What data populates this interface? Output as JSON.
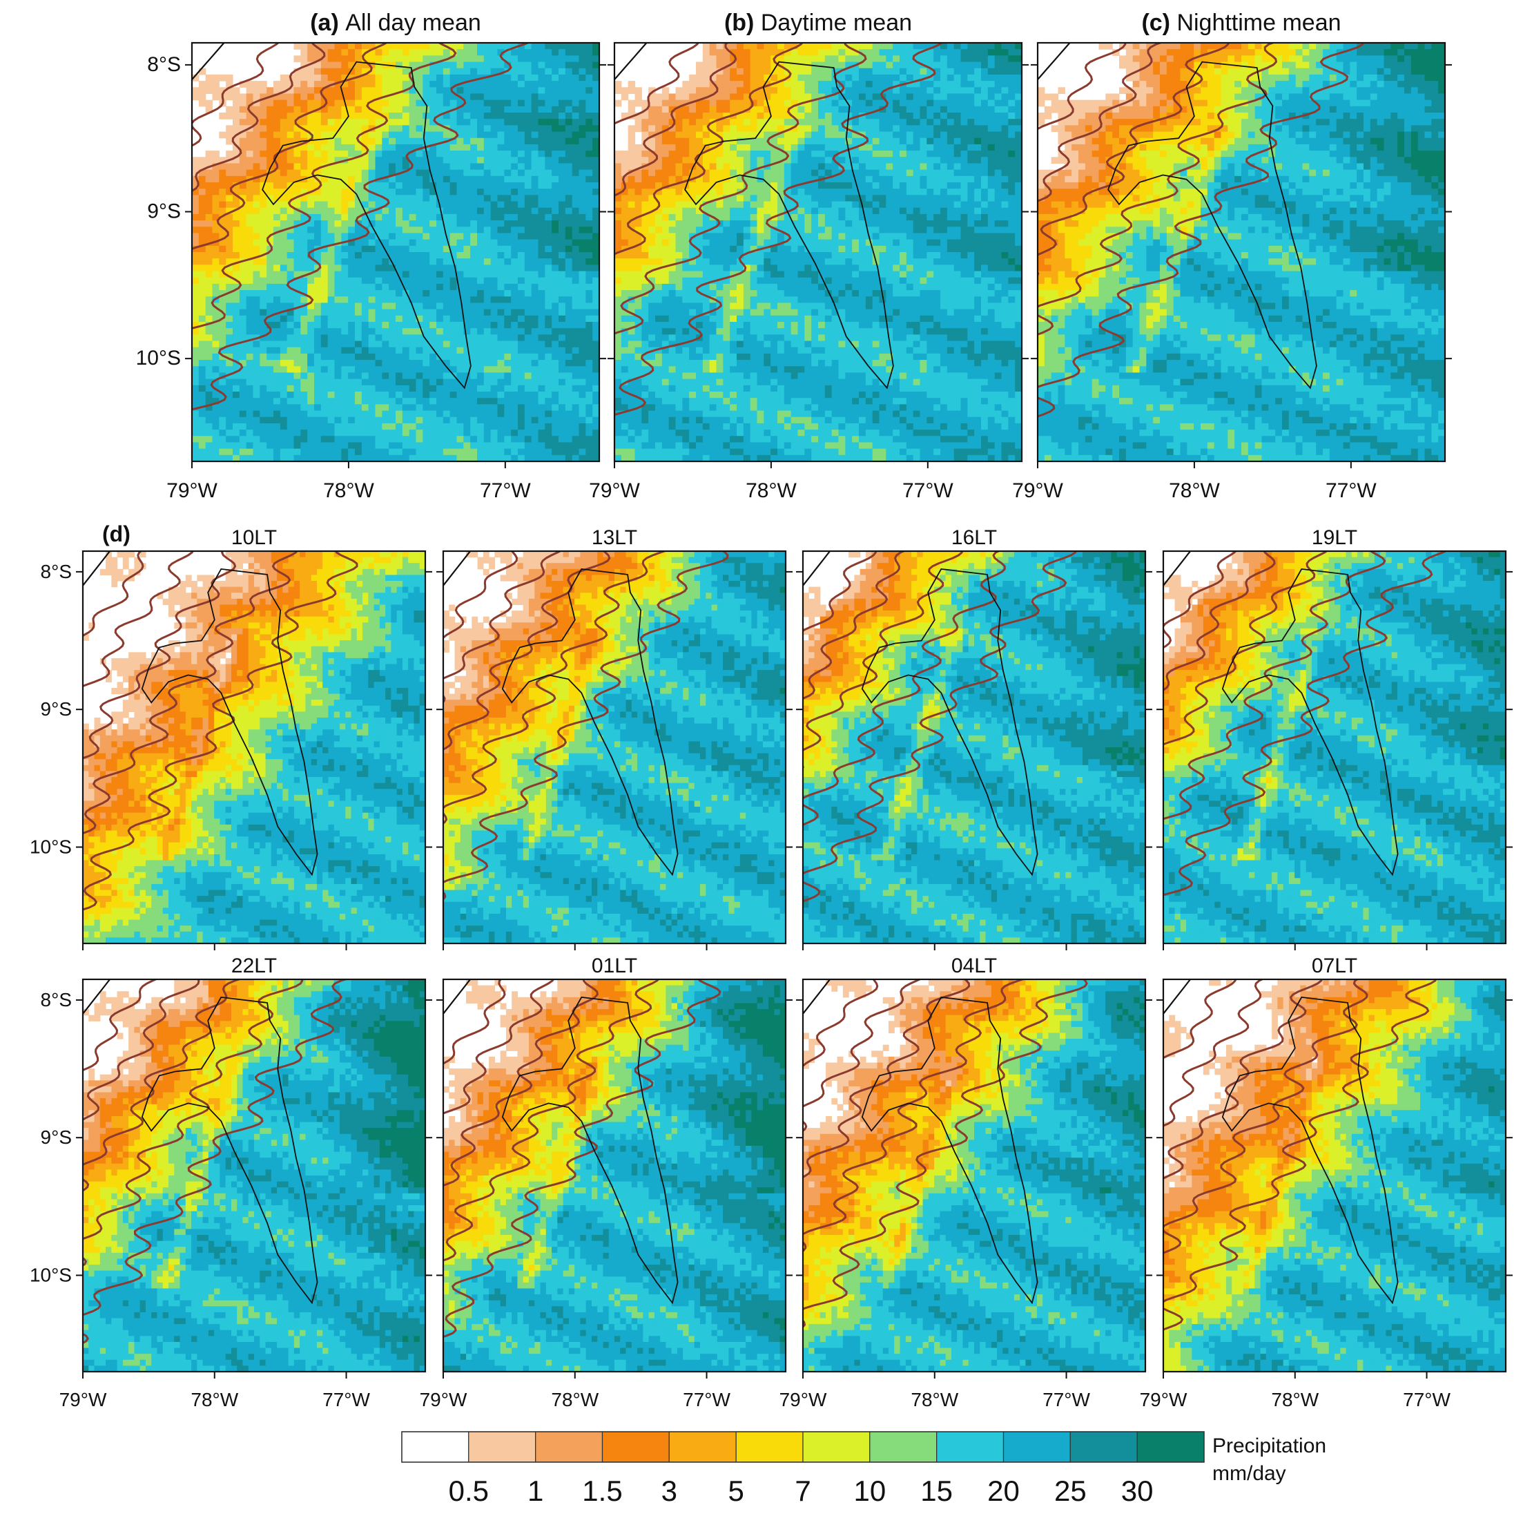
{
  "figure": {
    "top_panels": [
      {
        "letter": "(a)",
        "title": "All day mean",
        "field": "allday"
      },
      {
        "letter": "(b)",
        "title": "Daytime mean",
        "field": "day"
      },
      {
        "letter": "(c)",
        "title": "Nighttime mean",
        "field": "night"
      }
    ],
    "hourly_label": "(d)",
    "hourly_panels": [
      {
        "title": "10LT",
        "field": "h10"
      },
      {
        "title": "13LT",
        "field": "h13"
      },
      {
        "title": "16LT",
        "field": "h16"
      },
      {
        "title": "19LT",
        "field": "h19"
      },
      {
        "title": "22LT",
        "field": "h22"
      },
      {
        "title": "01LT",
        "field": "h01"
      },
      {
        "title": "04LT",
        "field": "h04"
      },
      {
        "title": "07LT",
        "field": "h07"
      }
    ],
    "lat_labels": [
      {
        "value": -8,
        "text": "8°S"
      },
      {
        "value": -9,
        "text": "9°S"
      },
      {
        "value": -10,
        "text": "10°S"
      }
    ],
    "lon_labels": [
      {
        "value": -79,
        "text": "79°W"
      },
      {
        "value": -78,
        "text": "78°W"
      },
      {
        "value": -77,
        "text": "77°W"
      }
    ],
    "extent": {
      "lon_min": -79.0,
      "lon_max": -76.4,
      "lat_min": -10.7,
      "lat_max": -7.85
    }
  },
  "legend": {
    "title_line1": "Precipitation",
    "title_line2": "mm/day",
    "labels": [
      "0.5",
      "1",
      "1.5",
      "3",
      "5",
      "7",
      "10",
      "15",
      "20",
      "25",
      "30"
    ],
    "colors": [
      "#ffffff",
      "#f8c9a0",
      "#f4a15c",
      "#f5850e",
      "#f8ab12",
      "#f9db0a",
      "#dcf02a",
      "#86dc7a",
      "#28c7da",
      "#16abcc",
      "#128f9a",
      "#08806a"
    ]
  }
}
